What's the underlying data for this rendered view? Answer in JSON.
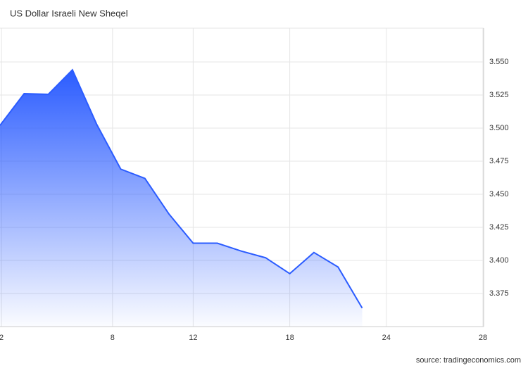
{
  "chart_data": {
    "type": "area",
    "title": "US Dollar Israeli New Sheqel",
    "source": "source: tradingeconomics.com",
    "color": "#2b5cff",
    "x": [
      0,
      1,
      2,
      3,
      4,
      5,
      6,
      7,
      8,
      9,
      10,
      11,
      12,
      13,
      14,
      15
    ],
    "values": [
      3.502,
      3.526,
      3.5255,
      3.544,
      3.503,
      3.469,
      3.462,
      3.435,
      3.413,
      3.413,
      3.407,
      3.402,
      3.39,
      3.406,
      3.395,
      3.364
    ],
    "xlim": [
      0,
      20.03
    ],
    "xticks": [
      {
        "value": 0.06,
        "label": "2"
      },
      {
        "value": 4.66,
        "label": "8"
      },
      {
        "value": 8,
        "label": "12"
      },
      {
        "value": 12,
        "label": "18"
      },
      {
        "value": 16,
        "label": "24"
      },
      {
        "value": 20,
        "label": "28"
      }
    ],
    "ylim": [
      3.35,
      3.5755
    ],
    "yticks": [
      {
        "value": 3.375,
        "label": "3.375"
      },
      {
        "value": 3.4,
        "label": "3.400"
      },
      {
        "value": 3.425,
        "label": "3.425"
      },
      {
        "value": 3.45,
        "label": "3.450"
      },
      {
        "value": 3.475,
        "label": "3.475"
      },
      {
        "value": 3.5,
        "label": "3.500"
      },
      {
        "value": 3.525,
        "label": "3.525"
      },
      {
        "value": 3.55,
        "label": "3.550"
      }
    ],
    "grid": true
  }
}
